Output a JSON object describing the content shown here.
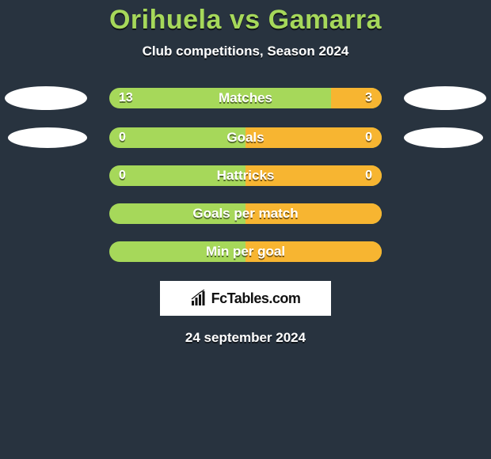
{
  "title": "Orihuela vs Gamarra",
  "subtitle": "Club competitions, Season 2024",
  "date": "24 september 2024",
  "logo_text": "FcTables.com",
  "colors": {
    "background": "#28333f",
    "title": "#a6d85a",
    "bar_base": "#a6d85a",
    "bar_fill": "#f7b531",
    "text": "#ffffff",
    "ellipse": "#ffffff",
    "logo_bg": "#ffffff",
    "logo_text": "#111111"
  },
  "bars": [
    {
      "label": "Matches",
      "left_value": "13",
      "right_value": "3",
      "left_percent": 81.25,
      "right_percent": 18.75,
      "show_ellipses": true,
      "ellipse_class": ""
    },
    {
      "label": "Goals",
      "left_value": "0",
      "right_value": "0",
      "left_percent": 50,
      "right_percent": 50,
      "show_ellipses": true,
      "ellipse_class": "ellipse-small"
    },
    {
      "label": "Hattricks",
      "left_value": "0",
      "right_value": "0",
      "left_percent": 50,
      "right_percent": 50,
      "show_ellipses": false
    },
    {
      "label": "Goals per match",
      "left_value": "",
      "right_value": "",
      "left_percent": 50,
      "right_percent": 50,
      "show_ellipses": false
    },
    {
      "label": "Min per goal",
      "left_value": "",
      "right_value": "",
      "left_percent": 50,
      "right_percent": 50,
      "show_ellipses": false
    }
  ]
}
